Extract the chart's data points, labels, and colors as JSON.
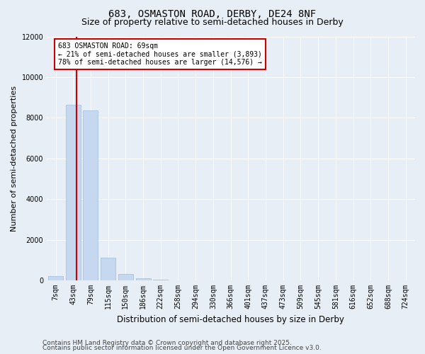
{
  "title_line1": "683, OSMASTON ROAD, DERBY, DE24 8NF",
  "title_line2": "Size of property relative to semi-detached houses in Derby",
  "xlabel": "Distribution of semi-detached houses by size in Derby",
  "ylabel": "Number of semi-detached properties",
  "categories": [
    "7sqm",
    "43sqm",
    "79sqm",
    "115sqm",
    "150sqm",
    "186sqm",
    "222sqm",
    "258sqm",
    "294sqm",
    "330sqm",
    "366sqm",
    "401sqm",
    "437sqm",
    "473sqm",
    "509sqm",
    "545sqm",
    "581sqm",
    "616sqm",
    "652sqm",
    "688sqm",
    "724sqm"
  ],
  "bar_heights": [
    200,
    8650,
    8350,
    1100,
    330,
    90,
    50,
    0,
    0,
    0,
    0,
    0,
    0,
    0,
    0,
    0,
    0,
    0,
    0,
    0,
    0
  ],
  "bar_color": "#c5d8f0",
  "bar_edge_color": "#a8c4e0",
  "ylim": [
    0,
    12000
  ],
  "yticks": [
    0,
    2000,
    4000,
    6000,
    8000,
    10000,
    12000
  ],
  "red_line_x": 1.187,
  "red_line_color": "#cc0000",
  "annotation_text": "683 OSMASTON ROAD: 69sqm\n← 21% of semi-detached houses are smaller (3,893)\n78% of semi-detached houses are larger (14,576) →",
  "annotation_box_color": "#ffffff",
  "annotation_box_edge": "#cc0000",
  "footer_line1": "Contains HM Land Registry data © Crown copyright and database right 2025.",
  "footer_line2": "Contains public sector information licensed under the Open Government Licence v3.0.",
  "background_color": "#e8eef5",
  "plot_bg_color": "#e8eef5",
  "grid_color": "#ffffff",
  "title_fontsize": 10,
  "subtitle_fontsize": 9,
  "footer_fontsize": 6.5,
  "tick_fontsize": 7,
  "ylabel_fontsize": 8,
  "xlabel_fontsize": 8.5
}
